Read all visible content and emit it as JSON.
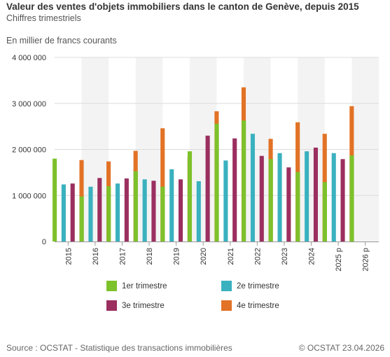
{
  "header": {
    "title": "Valeur des ventes d'objets immobiliers dans le canton de Genève, depuis 2015",
    "subtitle": "Chiffres trimestriels",
    "unit": "En millier de francs courants"
  },
  "footer": {
    "source": "Source : OCSTAT - Statistique des transactions immobilières",
    "copyright": "© OCSTAT 23.04.2026"
  },
  "chart_data": {
    "type": "bar",
    "title": "Valeur des ventes d'objets immobiliers dans le canton de Genève, depuis 2015",
    "subtitle": "Chiffres trimestriels",
    "ylabel": "En millier de francs courants",
    "xlabel": "",
    "ylim": [
      0,
      4000000
    ],
    "yticks": [
      0,
      1000000,
      2000000,
      3000000,
      4000000
    ],
    "ytick_labels": [
      "0",
      "1 000 000",
      "2 000 000",
      "3 000 000",
      "4 000 000"
    ],
    "grid": "horizontal",
    "alternate_band_shading": true,
    "legend_position": "bottom",
    "categories": [
      "2015",
      "2016",
      "2017",
      "2018",
      "2019",
      "2020",
      "2021",
      "2022",
      "2023",
      "2024",
      "2025 p",
      "2026 p"
    ],
    "series": [
      {
        "name": "1er trimestre",
        "color": "#7dc12b",
        "values": [
          1800000,
          980000,
          1200000,
          1530000,
          1190000,
          1960000,
          2560000,
          2630000,
          1790000,
          1510000,
          1290000,
          1870000
        ]
      },
      {
        "name": "2e trimestre",
        "color": "#3ab1bf",
        "values": [
          1240000,
          1190000,
          1260000,
          1350000,
          1570000,
          1310000,
          1760000,
          2340000,
          1920000,
          1960000,
          1920000,
          null
        ]
      },
      {
        "name": "3e trimestre",
        "color": "#9b2f5f",
        "values": [
          1260000,
          1380000,
          1370000,
          1320000,
          1350000,
          2300000,
          2240000,
          1860000,
          1610000,
          2040000,
          1790000,
          null
        ]
      },
      {
        "name": "4e trimestre",
        "color": "#e27225",
        "values": [
          1770000,
          1740000,
          1970000,
          2460000,
          1840000,
          2830000,
          3350000,
          2230000,
          2590000,
          2340000,
          2940000,
          null
        ]
      }
    ]
  }
}
